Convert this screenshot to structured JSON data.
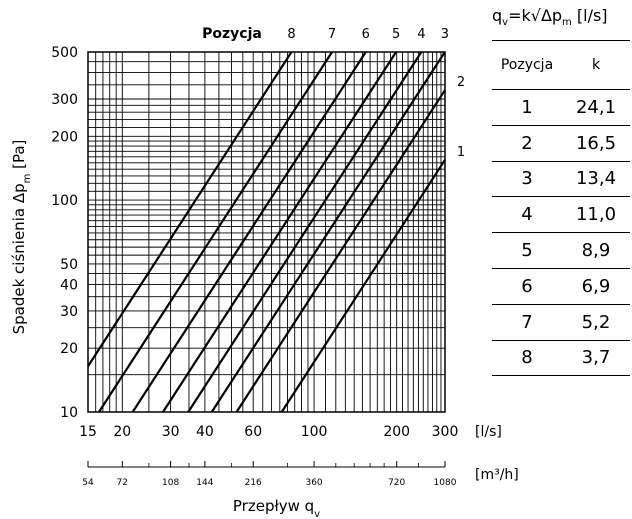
{
  "chart_data": {
    "type": "line",
    "scale": "log-log",
    "title": "Pozycja",
    "position_labels_top": [
      "8",
      "7",
      "6",
      "5",
      "4",
      "3"
    ],
    "position_labels_side": [
      "2",
      "1"
    ],
    "xlabel": "Przepływ q",
    "xlabel_sub": "v",
    "ylabel": "Spadek ciśnienia Δp",
    "ylabel_sub": "m",
    "ylabel_unit": "[Pa]",
    "x_unit": "[l/s]",
    "x2_unit": "[m³/h]",
    "xlim": [
      15,
      300
    ],
    "ylim": [
      10,
      500
    ],
    "x_ticks": [
      15,
      20,
      30,
      40,
      60,
      100,
      200,
      300
    ],
    "x2_ticks": [
      54,
      72,
      108,
      144,
      216,
      360,
      720,
      1080
    ],
    "y_ticks": [
      10,
      20,
      30,
      40,
      50,
      100,
      200,
      300,
      500
    ],
    "formula": "q=k√Δp",
    "formula_q_sub": "v",
    "formula_p_sub": "m",
    "formula_unit": "[l/s]",
    "series": [
      {
        "name": "1",
        "k": 24.1
      },
      {
        "name": "2",
        "k": 16.5
      },
      {
        "name": "3",
        "k": 13.4
      },
      {
        "name": "4",
        "k": 11.0
      },
      {
        "name": "5",
        "k": 8.9
      },
      {
        "name": "6",
        "k": 6.9
      },
      {
        "name": "7",
        "k": 5.2
      },
      {
        "name": "8",
        "k": 3.7
      }
    ]
  },
  "k_table": {
    "header_position": "Pozycja",
    "header_k": "k",
    "rows": [
      {
        "pos": "1",
        "k": "24,1"
      },
      {
        "pos": "2",
        "k": "16,5"
      },
      {
        "pos": "3",
        "k": "13,4"
      },
      {
        "pos": "4",
        "k": "11,0"
      },
      {
        "pos": "5",
        "k": "8,9"
      },
      {
        "pos": "6",
        "k": "6,9"
      },
      {
        "pos": "7",
        "k": "5,2"
      },
      {
        "pos": "8",
        "k": "3,7"
      }
    ]
  }
}
